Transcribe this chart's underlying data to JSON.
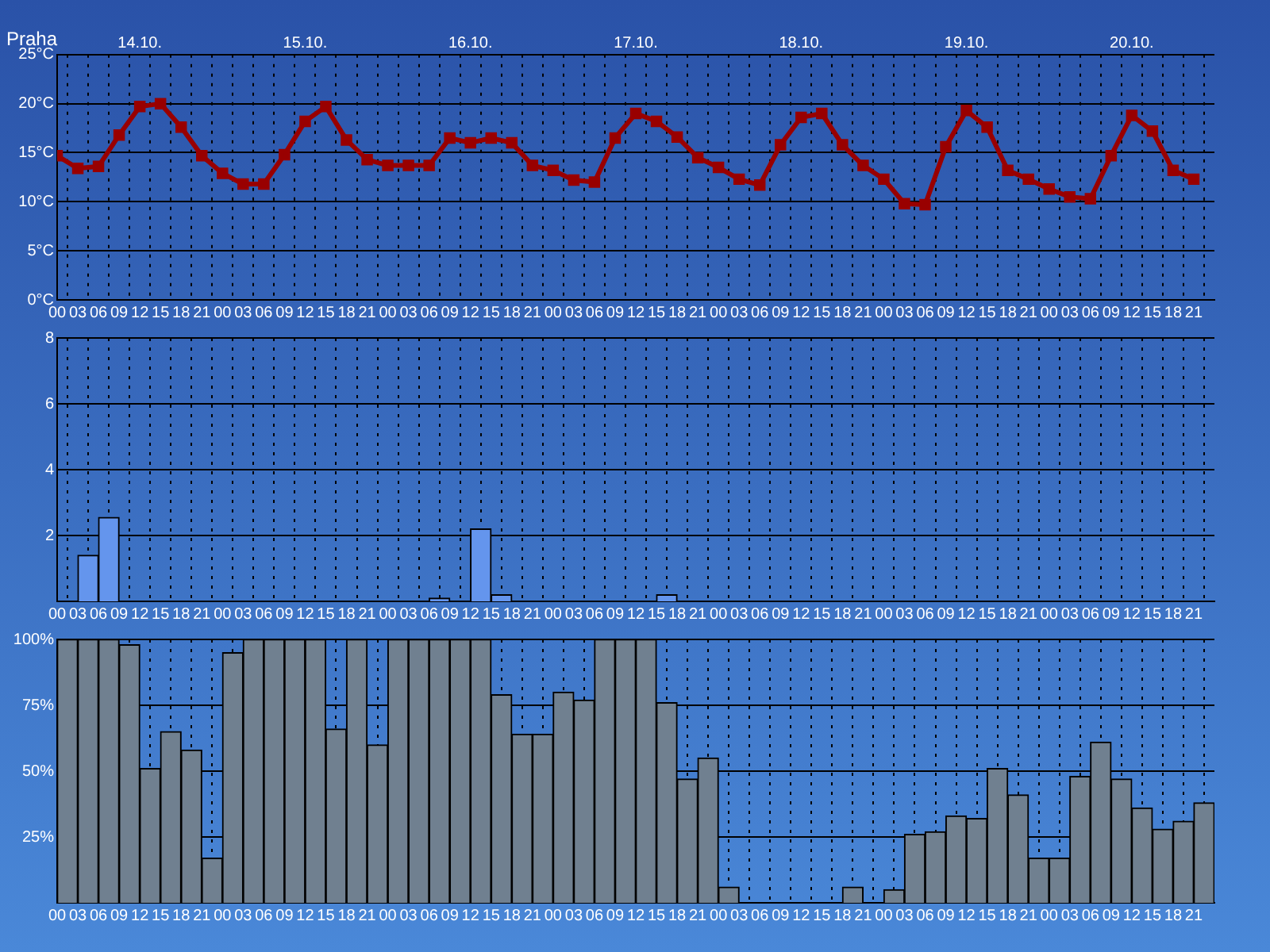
{
  "chart_data": [
    {
      "type": "line",
      "title": "Praha",
      "color": "#990000",
      "marker": "square",
      "grid": true,
      "x": [
        0,
        3,
        6,
        9,
        12,
        15,
        18,
        21,
        24,
        27,
        30,
        33,
        36,
        39,
        42,
        45,
        48,
        51,
        54,
        57,
        60,
        63,
        66,
        69,
        72,
        75,
        78,
        81,
        84,
        87,
        90,
        93,
        96,
        99,
        102,
        105,
        108,
        111,
        114,
        117,
        120,
        123,
        126,
        129,
        132,
        135,
        138,
        141,
        144,
        147,
        150,
        153,
        156,
        159,
        162,
        165
      ],
      "values": [
        14.7,
        13.4,
        13.6,
        16.8,
        19.7,
        20.0,
        17.6,
        14.7,
        12.9,
        11.8,
        11.8,
        14.8,
        18.2,
        19.7,
        16.3,
        14.3,
        13.7,
        13.7,
        13.7,
        16.5,
        16.0,
        16.5,
        16.0,
        13.7,
        13.2,
        12.2,
        12.0,
        16.5,
        19.0,
        18.2,
        16.6,
        14.5,
        13.5,
        12.3,
        11.7,
        15.8,
        18.6,
        19.0,
        15.8,
        13.7,
        12.3,
        9.8,
        9.7,
        15.6,
        19.3,
        17.6,
        13.2,
        12.3,
        11.3,
        10.5,
        10.3,
        14.7,
        18.8,
        17.2,
        13.2,
        12.3
      ],
      "ylim": [
        0,
        25
      ],
      "yticks": [
        {
          "value": 0,
          "label": "0°C"
        },
        {
          "value": 5,
          "label": "5°C"
        },
        {
          "value": 10,
          "label": "10°C"
        },
        {
          "value": 15,
          "label": "15°C"
        },
        {
          "value": 20,
          "label": "20°C"
        },
        {
          "value": 25,
          "label": "25°C"
        }
      ],
      "xlim": [
        0,
        168
      ],
      "xticks": [
        {
          "value": 0,
          "label": "00"
        },
        {
          "value": 3,
          "label": "03"
        },
        {
          "value": 6,
          "label": "06"
        },
        {
          "value": 9,
          "label": "09"
        },
        {
          "value": 12,
          "label": "12"
        },
        {
          "value": 15,
          "label": "15"
        },
        {
          "value": 18,
          "label": "18"
        },
        {
          "value": 21,
          "label": "21"
        },
        {
          "value": 24,
          "label": "00"
        },
        {
          "value": 27,
          "label": "03"
        },
        {
          "value": 30,
          "label": "06"
        },
        {
          "value": 33,
          "label": "09"
        },
        {
          "value": 36,
          "label": "12"
        },
        {
          "value": 39,
          "label": "15"
        },
        {
          "value": 42,
          "label": "18"
        },
        {
          "value": 45,
          "label": "21"
        },
        {
          "value": 48,
          "label": "00"
        },
        {
          "value": 51,
          "label": "03"
        },
        {
          "value": 54,
          "label": "06"
        },
        {
          "value": 57,
          "label": "09"
        },
        {
          "value": 60,
          "label": "12"
        },
        {
          "value": 63,
          "label": "15"
        },
        {
          "value": 66,
          "label": "18"
        },
        {
          "value": 69,
          "label": "21"
        },
        {
          "value": 72,
          "label": "00"
        },
        {
          "value": 75,
          "label": "03"
        },
        {
          "value": 78,
          "label": "06"
        },
        {
          "value": 81,
          "label": "09"
        },
        {
          "value": 84,
          "label": "12"
        },
        {
          "value": 87,
          "label": "15"
        },
        {
          "value": 90,
          "label": "18"
        },
        {
          "value": 93,
          "label": "21"
        },
        {
          "value": 96,
          "label": "00"
        },
        {
          "value": 99,
          "label": "03"
        },
        {
          "value": 102,
          "label": "06"
        },
        {
          "value": 105,
          "label": "09"
        },
        {
          "value": 108,
          "label": "12"
        },
        {
          "value": 111,
          "label": "15"
        },
        {
          "value": 114,
          "label": "18"
        },
        {
          "value": 117,
          "label": "21"
        },
        {
          "value": 120,
          "label": "00"
        },
        {
          "value": 123,
          "label": "03"
        },
        {
          "value": 126,
          "label": "06"
        },
        {
          "value": 129,
          "label": "09"
        },
        {
          "value": 132,
          "label": "12"
        },
        {
          "value": 135,
          "label": "15"
        },
        {
          "value": 138,
          "label": "18"
        },
        {
          "value": 141,
          "label": "21"
        },
        {
          "value": 144,
          "label": "00"
        },
        {
          "value": 147,
          "label": "03"
        },
        {
          "value": 150,
          "label": "06"
        },
        {
          "value": 153,
          "label": "09"
        },
        {
          "value": 156,
          "label": "12"
        },
        {
          "value": 159,
          "label": "15"
        },
        {
          "value": 162,
          "label": "18"
        },
        {
          "value": 165,
          "label": "21"
        }
      ],
      "annotations": [
        "14.10.",
        "15.10.",
        "16.10.",
        "17.10.",
        "18.10.",
        "19.10.",
        "20.10."
      ]
    },
    {
      "type": "histogram",
      "color": "#6495ed",
      "grid": true,
      "bins": [
        0,
        3,
        6,
        9,
        12,
        15,
        18,
        21,
        24,
        27,
        30,
        33,
        36,
        39,
        42,
        45,
        48,
        51,
        54,
        57,
        60,
        63,
        66,
        69,
        72,
        75,
        78,
        81,
        84,
        87,
        90,
        93,
        96,
        99,
        102,
        105,
        108,
        111,
        114,
        117,
        120,
        123,
        126,
        129,
        132,
        135,
        138,
        141,
        144,
        147,
        150,
        153,
        156,
        159,
        162,
        165,
        168
      ],
      "values": [
        0,
        1.4,
        2.55,
        0,
        0,
        0,
        0,
        0,
        0,
        0,
        0,
        0,
        0,
        0,
        0,
        0,
        0,
        0,
        0.1,
        0,
        2.2,
        0.2,
        0,
        0,
        0,
        0,
        0,
        0,
        0,
        0.2,
        0,
        0,
        0,
        0,
        0,
        0,
        0,
        0,
        0,
        0,
        0,
        0,
        0,
        0,
        0,
        0,
        0,
        0,
        0,
        0,
        0,
        0,
        0,
        0,
        0,
        0
      ],
      "ylim": [
        0,
        8
      ],
      "yticks": [
        2,
        4,
        6,
        8
      ],
      "xlim": [
        0,
        168
      ],
      "xticks": [
        {
          "value": 0,
          "label": "00"
        },
        {
          "value": 3,
          "label": "03"
        },
        {
          "value": 6,
          "label": "06"
        },
        {
          "value": 9,
          "label": "09"
        },
        {
          "value": 12,
          "label": "12"
        },
        {
          "value": 15,
          "label": "15"
        },
        {
          "value": 18,
          "label": "18"
        },
        {
          "value": 21,
          "label": "21"
        },
        {
          "value": 24,
          "label": "00"
        },
        {
          "value": 27,
          "label": "03"
        },
        {
          "value": 30,
          "label": "06"
        },
        {
          "value": 33,
          "label": "09"
        },
        {
          "value": 36,
          "label": "12"
        },
        {
          "value": 39,
          "label": "15"
        },
        {
          "value": 42,
          "label": "18"
        },
        {
          "value": 45,
          "label": "21"
        },
        {
          "value": 48,
          "label": "00"
        },
        {
          "value": 51,
          "label": "03"
        },
        {
          "value": 54,
          "label": "06"
        },
        {
          "value": 57,
          "label": "09"
        },
        {
          "value": 60,
          "label": "12"
        },
        {
          "value": 63,
          "label": "15"
        },
        {
          "value": 66,
          "label": "18"
        },
        {
          "value": 69,
          "label": "21"
        },
        {
          "value": 72,
          "label": "00"
        },
        {
          "value": 75,
          "label": "03"
        },
        {
          "value": 78,
          "label": "06"
        },
        {
          "value": 81,
          "label": "09"
        },
        {
          "value": 84,
          "label": "12"
        },
        {
          "value": 87,
          "label": "15"
        },
        {
          "value": 90,
          "label": "18"
        },
        {
          "value": 93,
          "label": "21"
        },
        {
          "value": 96,
          "label": "00"
        },
        {
          "value": 99,
          "label": "03"
        },
        {
          "value": 102,
          "label": "06"
        },
        {
          "value": 105,
          "label": "09"
        },
        {
          "value": 108,
          "label": "12"
        },
        {
          "value": 111,
          "label": "15"
        },
        {
          "value": 114,
          "label": "18"
        },
        {
          "value": 117,
          "label": "21"
        },
        {
          "value": 120,
          "label": "00"
        },
        {
          "value": 123,
          "label": "03"
        },
        {
          "value": 126,
          "label": "06"
        },
        {
          "value": 129,
          "label": "09"
        },
        {
          "value": 132,
          "label": "12"
        },
        {
          "value": 135,
          "label": "15"
        },
        {
          "value": 138,
          "label": "18"
        },
        {
          "value": 141,
          "label": "21"
        },
        {
          "value": 144,
          "label": "00"
        },
        {
          "value": 147,
          "label": "03"
        },
        {
          "value": 150,
          "label": "06"
        },
        {
          "value": 153,
          "label": "09"
        },
        {
          "value": 156,
          "label": "12"
        },
        {
          "value": 159,
          "label": "15"
        },
        {
          "value": 162,
          "label": "18"
        },
        {
          "value": 165,
          "label": "21"
        }
      ]
    },
    {
      "type": "histogram",
      "color": "#708090",
      "grid": true,
      "bins": [
        0,
        3,
        6,
        9,
        12,
        15,
        18,
        21,
        24,
        27,
        30,
        33,
        36,
        39,
        42,
        45,
        48,
        51,
        54,
        57,
        60,
        63,
        66,
        69,
        72,
        75,
        78,
        81,
        84,
        87,
        90,
        93,
        96,
        99,
        102,
        105,
        108,
        111,
        114,
        117,
        120,
        123,
        126,
        129,
        132,
        135,
        138,
        141,
        144,
        147,
        150,
        153,
        156,
        159,
        162,
        165,
        168
      ],
      "values": [
        100,
        100,
        100,
        98,
        51,
        65,
        58,
        17,
        95,
        100,
        100,
        100,
        100,
        66,
        100,
        60,
        100,
        100,
        100,
        100,
        100,
        79,
        64,
        64,
        80,
        77,
        100,
        100,
        100,
        76,
        47,
        55,
        6,
        0,
        0,
        0,
        0,
        0,
        6,
        0,
        5,
        26,
        27,
        33,
        32,
        51,
        41,
        17,
        17,
        48,
        61,
        47,
        36,
        28,
        31,
        38
      ],
      "ylim": [
        0,
        100
      ],
      "yticks": [
        {
          "value": 25,
          "label": "25%"
        },
        {
          "value": 50,
          "label": "50%"
        },
        {
          "value": 75,
          "label": "75%"
        },
        {
          "value": 100,
          "label": "100%"
        }
      ],
      "xlim": [
        0,
        168
      ],
      "xticks": [
        {
          "value": 0,
          "label": "00"
        },
        {
          "value": 3,
          "label": "03"
        },
        {
          "value": 6,
          "label": "06"
        },
        {
          "value": 9,
          "label": "09"
        },
        {
          "value": 12,
          "label": "12"
        },
        {
          "value": 15,
          "label": "15"
        },
        {
          "value": 18,
          "label": "18"
        },
        {
          "value": 21,
          "label": "21"
        },
        {
          "value": 24,
          "label": "00"
        },
        {
          "value": 27,
          "label": "03"
        },
        {
          "value": 30,
          "label": "06"
        },
        {
          "value": 33,
          "label": "09"
        },
        {
          "value": 36,
          "label": "12"
        },
        {
          "value": 39,
          "label": "15"
        },
        {
          "value": 42,
          "label": "18"
        },
        {
          "value": 45,
          "label": "21"
        },
        {
          "value": 48,
          "label": "00"
        },
        {
          "value": 51,
          "label": "03"
        },
        {
          "value": 54,
          "label": "06"
        },
        {
          "value": 57,
          "label": "09"
        },
        {
          "value": 60,
          "label": "12"
        },
        {
          "value": 63,
          "label": "15"
        },
        {
          "value": 66,
          "label": "18"
        },
        {
          "value": 69,
          "label": "21"
        },
        {
          "value": 72,
          "label": "00"
        },
        {
          "value": 75,
          "label": "03"
        },
        {
          "value": 78,
          "label": "06"
        },
        {
          "value": 81,
          "label": "09"
        },
        {
          "value": 84,
          "label": "12"
        },
        {
          "value": 87,
          "label": "15"
        },
        {
          "value": 90,
          "label": "18"
        },
        {
          "value": 93,
          "label": "21"
        },
        {
          "value": 96,
          "label": "00"
        },
        {
          "value": 99,
          "label": "03"
        },
        {
          "value": 102,
          "label": "06"
        },
        {
          "value": 105,
          "label": "09"
        },
        {
          "value": 108,
          "label": "12"
        },
        {
          "value": 111,
          "label": "15"
        },
        {
          "value": 114,
          "label": "18"
        },
        {
          "value": 117,
          "label": "21"
        },
        {
          "value": 120,
          "label": "00"
        },
        {
          "value": 123,
          "label": "03"
        },
        {
          "value": 126,
          "label": "06"
        },
        {
          "value": 129,
          "label": "09"
        },
        {
          "value": 132,
          "label": "12"
        },
        {
          "value": 135,
          "label": "15"
        },
        {
          "value": 138,
          "label": "18"
        },
        {
          "value": 141,
          "label": "21"
        },
        {
          "value": 144,
          "label": "00"
        },
        {
          "value": 147,
          "label": "03"
        },
        {
          "value": 150,
          "label": "06"
        },
        {
          "value": 153,
          "label": "09"
        },
        {
          "value": 156,
          "label": "12"
        },
        {
          "value": 159,
          "label": "15"
        },
        {
          "value": 162,
          "label": "18"
        },
        {
          "value": 165,
          "label": "21"
        }
      ]
    }
  ]
}
